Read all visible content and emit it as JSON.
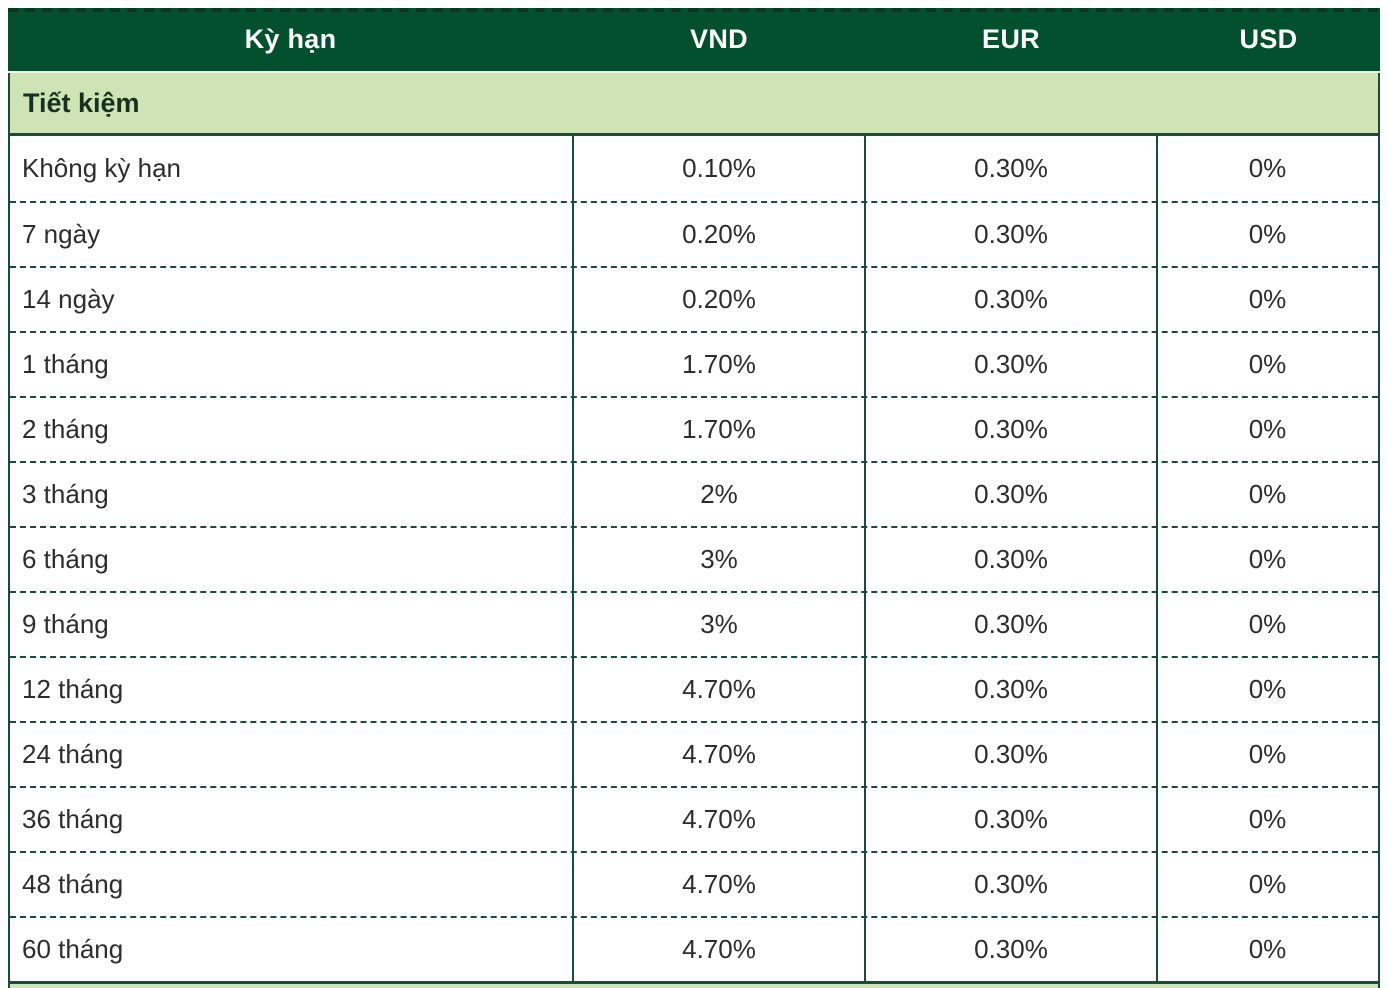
{
  "chart_data": {
    "type": "table",
    "columns": [
      "Kỳ hạn",
      "VND",
      "EUR",
      "USD"
    ],
    "section_label": "Tiết kiệm",
    "rows": [
      {
        "label": "Không kỳ hạn",
        "vnd": "0.10%",
        "eur": "0.30%",
        "usd": "0%"
      },
      {
        "label": "7 ngày",
        "vnd": "0.20%",
        "eur": "0.30%",
        "usd": "0%"
      },
      {
        "label": "14 ngày",
        "vnd": "0.20%",
        "eur": "0.30%",
        "usd": "0%"
      },
      {
        "label": "1 tháng",
        "vnd": "1.70%",
        "eur": "0.30%",
        "usd": "0%"
      },
      {
        "label": "2 tháng",
        "vnd": "1.70%",
        "eur": "0.30%",
        "usd": "0%"
      },
      {
        "label": "3 tháng",
        "vnd": "2%",
        "eur": "0.30%",
        "usd": "0%"
      },
      {
        "label": "6 tháng",
        "vnd": "3%",
        "eur": "0.30%",
        "usd": "0%"
      },
      {
        "label": "9 tháng",
        "vnd": "3%",
        "eur": "0.30%",
        "usd": "0%"
      },
      {
        "label": "12 tháng",
        "vnd": "4.70%",
        "eur": "0.30%",
        "usd": "0%"
      },
      {
        "label": "24 tháng",
        "vnd": "4.70%",
        "eur": "0.30%",
        "usd": "0%"
      },
      {
        "label": "36 tháng",
        "vnd": "4.70%",
        "eur": "0.30%",
        "usd": "0%"
      },
      {
        "label": "48 tháng",
        "vnd": "4.70%",
        "eur": "0.30%",
        "usd": "0%"
      },
      {
        "label": "60 tháng",
        "vnd": "4.70%",
        "eur": "0.30%",
        "usd": "0%"
      }
    ],
    "layout": {
      "grid": "dashed-row-separators",
      "legend_position": "none"
    }
  },
  "theme": {
    "header_bg": "#03502f",
    "section_bg": "#cee4b4",
    "border": "#1c4c39",
    "dash_dark": "#0a3723",
    "header_text": "#ffffff",
    "section_text": "#17301f",
    "cell_text": "#2d2d2d"
  }
}
